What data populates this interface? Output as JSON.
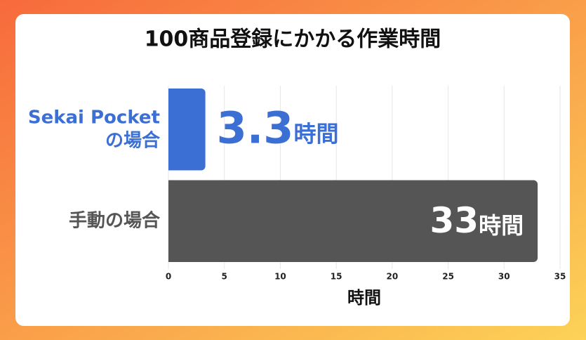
{
  "chart_data": {
    "type": "bar",
    "orientation": "horizontal",
    "title": "100商品登録にかかる作業時間",
    "categories": [
      [
        "Sekai Pocket",
        "の場合"
      ],
      [
        "手動の場合"
      ]
    ],
    "values": [
      3.3,
      33
    ],
    "value_unit": "時間",
    "colors": [
      "#3b6fd4",
      "#555555"
    ],
    "xlim": [
      0,
      35
    ],
    "xticks": [
      0,
      5,
      10,
      15,
      20,
      25,
      30,
      35
    ],
    "xlabel": "時間",
    "grid": true
  }
}
